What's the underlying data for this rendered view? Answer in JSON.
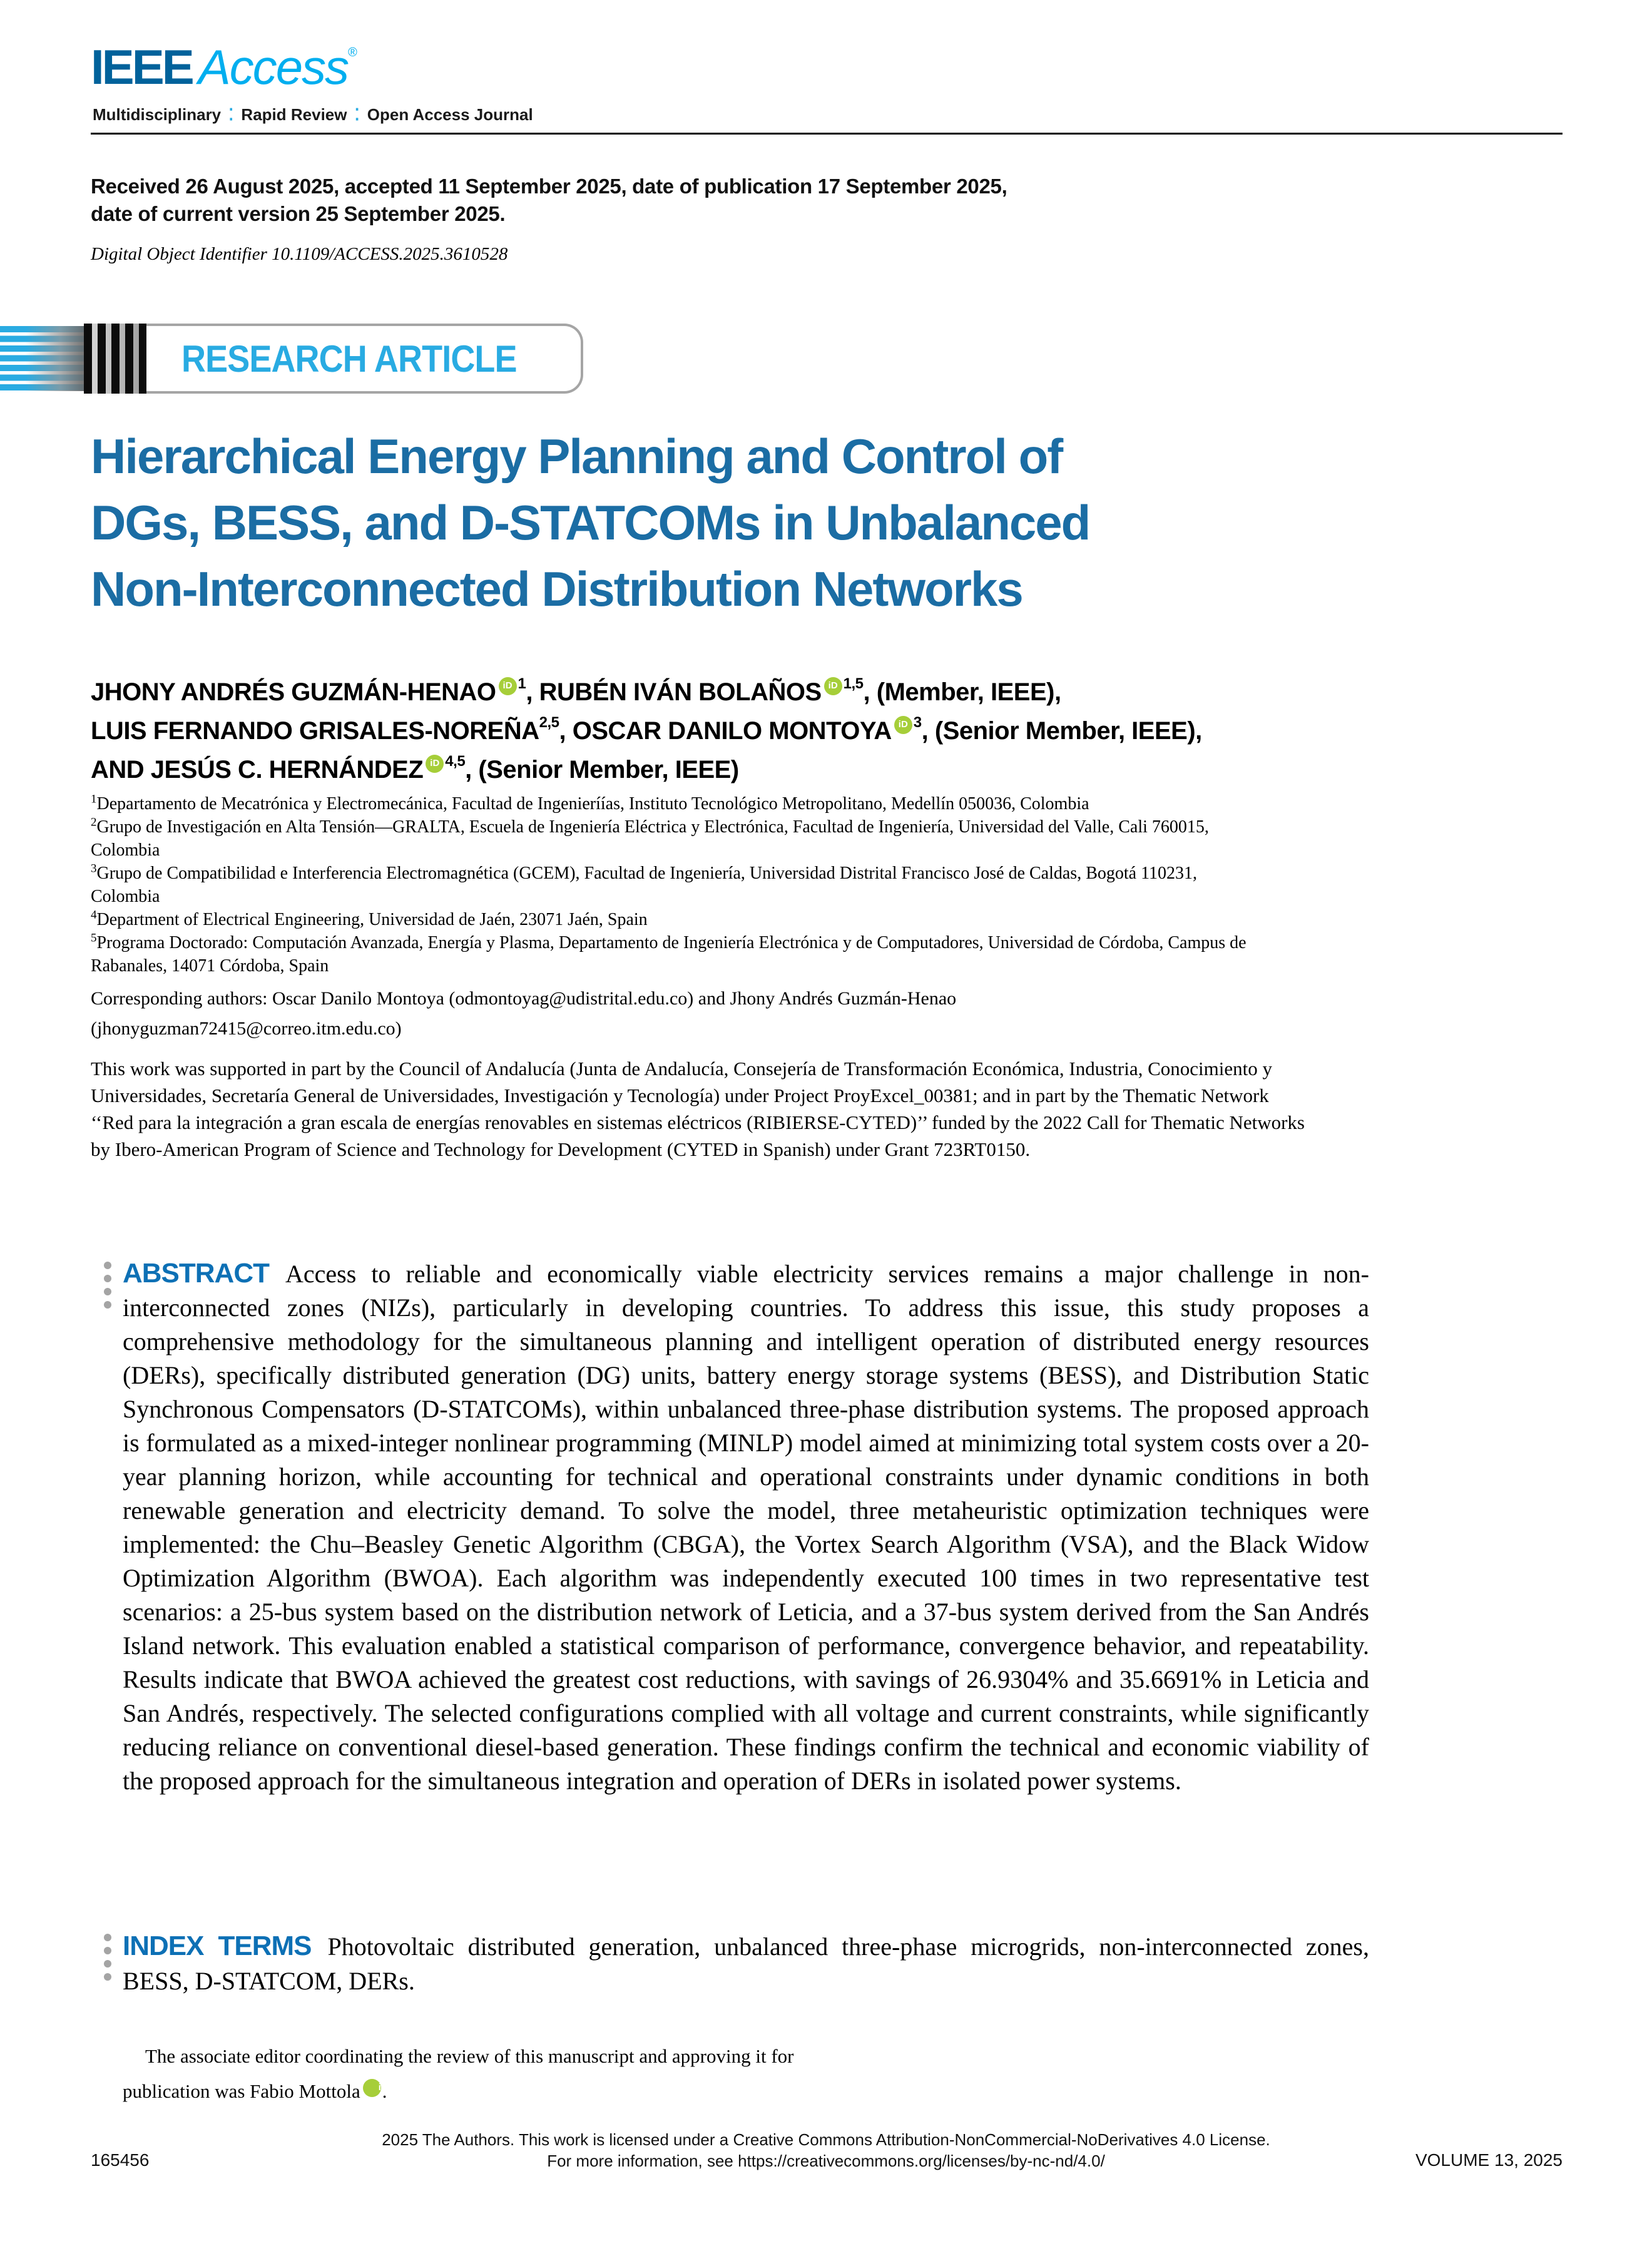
{
  "logo": {
    "ieee": "IEEE",
    "access": "Access",
    "registered": "®",
    "tagline": [
      "Multidisciplinary",
      "Rapid Review",
      "Open Access Journal"
    ],
    "separator": "⁚"
  },
  "orcid_label": "iD",
  "meta": {
    "received_lines": [
      "Received 26 August 2025, accepted 11 September 2025, date of publication 17 September 2025,",
      "date of current version 25 September 2025."
    ],
    "doi": "Digital Object Identifier 10.1109/ACCESS.2025.3610528"
  },
  "banner": {
    "label": "RESEARCH ARTICLE"
  },
  "title": {
    "lines": [
      "Hierarchical Energy Planning and Control of",
      "DGs, BESS, and D-STATCOMs in Unbalanced",
      "Non-Interconnected Distribution Networks"
    ]
  },
  "authors": {
    "lines": [
      [
        {
          "t": "JHONY ANDRÉS GUZMÁN-HENAO"
        },
        {
          "orcid": true
        },
        {
          "sup": "1"
        },
        {
          "t": ", RUBÉN IVÁN BOLAÑOS"
        },
        {
          "orcid": true
        },
        {
          "sup": "1,5"
        },
        {
          "t": ", (Member, IEEE),"
        }
      ],
      [
        {
          "t": "LUIS FERNANDO GRISALES-NOREÑA"
        },
        {
          "sup": "2,5"
        },
        {
          "t": ", OSCAR DANILO MONTOYA"
        },
        {
          "orcid": true
        },
        {
          "sup": "3"
        },
        {
          "t": ", (Senior Member, IEEE),"
        }
      ],
      [
        {
          "t": "AND JESÚS C. HERNÁNDEZ"
        },
        {
          "orcid": true
        },
        {
          "sup": "4,5"
        },
        {
          "t": ", (Senior Member, IEEE)"
        }
      ]
    ]
  },
  "affiliations": [
    {
      "sup": "1",
      "text": "Departamento de Mecatrónica y Electromecánica, Facultad de Ingenieríías, Instituto Tecnológico Metropolitano, Medellín 050036, Colombia"
    },
    {
      "sup": "2",
      "text": "Grupo de Investigación en Alta Tensión—GRALTA, Escuela de Ingeniería Eléctrica y Electrónica, Facultad de Ingeniería, Universidad del Valle, Cali 760015, Colombia"
    },
    {
      "sup": "3",
      "text": "Grupo de Compatibilidad e Interferencia Electromagnética (GCEM), Facultad de Ingeniería, Universidad Distrital Francisco José de Caldas, Bogotá 110231, Colombia"
    },
    {
      "sup": "4",
      "text": "Department of Electrical Engineering, Universidad de Jaén, 23071 Jaén, Spain"
    },
    {
      "sup": "5",
      "text": "Programa Doctorado: Computación Avanzada, Energía y Plasma, Departamento de Ingeniería Electrónica y de Computadores, Universidad de Córdoba, Campus de Rabanales, 14071 Córdoba, Spain"
    }
  ],
  "corresponding": {
    "text": "Corresponding authors: Oscar Danilo Montoya (odmontoyag@udistrital.edu.co) and Jhony Andrés Guzmán-Henao (jhonyguzman72415@correo.itm.edu.co)"
  },
  "funding": {
    "text": "This work was supported in part by the Council of Andalucía (Junta de Andalucía, Consejería de Transformación Económica, Industria, Conocimiento y Universidades, Secretaría General de Universidades, Investigación y Tecnología) under Project ProyExcel_00381; and in part by the Thematic Network ‘‘Red para la integración a gran escala de energías renovables en sistemas eléctricos (RIBIERSE-CYTED)’’ funded by the 2022 Call for Thematic Networks by Ibero-American Program of Science and Technology for Development (CYTED in Spanish) under Grant 723RT0150."
  },
  "abstract": {
    "heading": "ABSTRACT",
    "text": "Access to reliable and economically viable electricity services remains a major challenge in non-interconnected zones (NIZs), particularly in developing countries. To address this issue, this study proposes a comprehensive methodology for the simultaneous planning and intelligent operation of distributed energy resources (DERs), specifically distributed generation (DG) units, battery energy storage systems (BESS), and Distribution Static Synchronous Compensators (D-STATCOMs), within unbalanced three-phase distribution systems. The proposed approach is formulated as a mixed-integer nonlinear programming (MINLP) model aimed at minimizing total system costs over a 20-year planning horizon, while accounting for technical and operational constraints under dynamic conditions in both renewable generation and electricity demand. To solve the model, three metaheuristic optimization techniques were implemented: the Chu–Beasley Genetic Algorithm (CBGA), the Vortex Search Algorithm (VSA), and the Black Widow Optimization Algorithm (BWOA). Each algorithm was independently executed 100 times in two representative test scenarios: a 25-bus system based on the distribution network of Leticia, and a 37-bus system derived from the San Andrés Island network. This evaluation enabled a statistical comparison of performance, convergence behavior, and repeatability. Results indicate that BWOA achieved the greatest cost reductions, with savings of 26.9304% and 35.6691% in Leticia and San Andrés, respectively. The selected configurations complied with all voltage and current constraints, while significantly reducing reliance on conventional diesel-based generation. These findings confirm the technical and economic viability of the proposed approach for the simultaneous integration and operation of DERs in isolated power systems."
  },
  "index_terms": {
    "heading": "INDEX TERMS",
    "text": "Photovoltaic distributed generation, unbalanced three-phase microgrids, non-interconnected zones, BESS, D-STATCOM, DERs."
  },
  "editor_note": {
    "text": "The associate editor coordinating the review of this manuscript and approving it for publication was Fabio Mottola",
    "suffix": "."
  },
  "footer": {
    "license_line1": "2025 The Authors. This work is licensed under a Creative Commons Attribution-NonCommercial-NoDerivatives 4.0 License.",
    "license_line2": "For more information, see https://creativecommons.org/licenses/by-nc-nd/4.0/",
    "page_number": "165456",
    "volume": "VOLUME 13, 2025"
  },
  "colors": {
    "ieee_blue": "#00629B",
    "access_cyan": "#00AEEF",
    "banner_cyan": "#29ABE2",
    "title_blue": "#1B6DA4",
    "heading_blue": "#0D70B5",
    "orcid_green": "#A6CE39"
  }
}
